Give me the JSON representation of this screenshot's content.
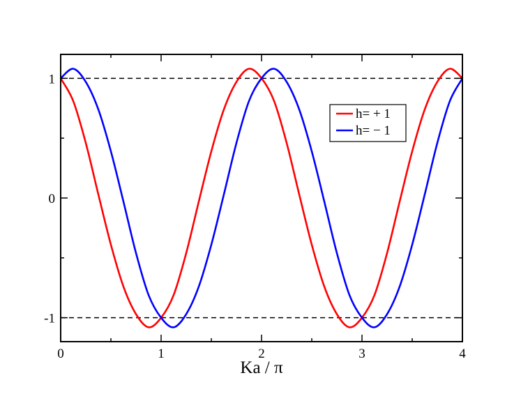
{
  "chart_data": {
    "type": "line",
    "title": "",
    "xlabel": "Ka / π",
    "ylabel": "",
    "xlim": [
      0,
      4
    ],
    "ylim": [
      -1.2,
      1.2
    ],
    "x_ticks": [
      0,
      1,
      2,
      3,
      4
    ],
    "x_tick_labels": [
      "0",
      "1",
      "2",
      "3",
      "4"
    ],
    "y_ticks": [
      -1,
      0,
      1
    ],
    "y_tick_labels": [
      "-1",
      "0",
      "1"
    ],
    "grid": false,
    "legend_position": "top-right",
    "reference_lines": [
      {
        "y": 1,
        "style": "dashed",
        "color": "#000000"
      },
      {
        "y": -1,
        "style": "dashed",
        "color": "#000000"
      }
    ],
    "series": [
      {
        "name": "h= + 1",
        "color": "#ff0000",
        "x": [
          0,
          0.125,
          0.25,
          0.375,
          0.5,
          0.625,
          0.75,
          0.875,
          1.0,
          1.125,
          1.25,
          1.375,
          1.5,
          1.625,
          1.75,
          1.875,
          2.0,
          2.125,
          2.25,
          2.375,
          2.5,
          2.625,
          2.75,
          2.875,
          3.0,
          3.125,
          3.25,
          3.375,
          3.5,
          3.625,
          3.75,
          3.875,
          4.0
        ],
        "y": [
          1.0,
          0.81,
          0.46,
          0.03,
          -0.39,
          -0.74,
          -0.97,
          -1.08,
          -1.0,
          -0.81,
          -0.46,
          -0.03,
          0.39,
          0.74,
          0.97,
          1.08,
          1.0,
          0.81,
          0.46,
          0.03,
          -0.39,
          -0.74,
          -0.97,
          -1.08,
          -1.0,
          -0.81,
          -0.46,
          -0.03,
          0.39,
          0.74,
          0.97,
          1.08,
          1.0
        ]
      },
      {
        "name": "h= − 1",
        "color": "#0000ff",
        "x": [
          0,
          0.125,
          0.25,
          0.375,
          0.5,
          0.625,
          0.75,
          0.875,
          1.0,
          1.125,
          1.25,
          1.375,
          1.5,
          1.625,
          1.75,
          1.875,
          2.0,
          2.125,
          2.25,
          2.375,
          2.5,
          2.625,
          2.75,
          2.875,
          3.0,
          3.125,
          3.25,
          3.375,
          3.5,
          3.625,
          3.75,
          3.875,
          4.0
        ],
        "y": [
          1.0,
          1.08,
          0.97,
          0.74,
          0.39,
          -0.03,
          -0.46,
          -0.81,
          -1.0,
          -1.08,
          -0.97,
          -0.74,
          -0.39,
          0.03,
          0.46,
          0.81,
          1.0,
          1.08,
          0.97,
          0.74,
          0.39,
          -0.03,
          -0.46,
          -0.81,
          -1.0,
          -1.08,
          -0.97,
          -0.74,
          -0.39,
          0.03,
          0.46,
          0.81,
          1.0
        ]
      }
    ]
  }
}
